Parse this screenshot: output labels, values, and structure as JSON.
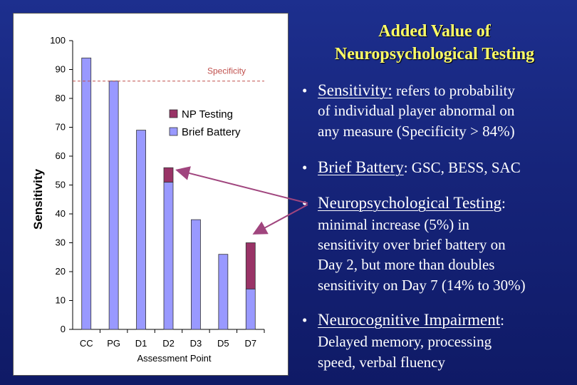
{
  "chart_data": {
    "type": "bar",
    "stacked": true,
    "categories": [
      "CC",
      "PG",
      "D1",
      "D2",
      "D3",
      "D5",
      "D7"
    ],
    "series": [
      {
        "name": "Brief Battery",
        "values": [
          94,
          86,
          69,
          51,
          38,
          26,
          14
        ],
        "color": "#9999ff"
      },
      {
        "name": "NP Testing",
        "values": [
          0,
          0,
          0,
          5,
          0,
          0,
          16
        ],
        "color": "#993366"
      }
    ],
    "xlabel": "Assessment Point",
    "ylabel": "Sensitivity",
    "ylim": [
      0,
      100
    ],
    "yticks": [
      0,
      10,
      20,
      30,
      40,
      50,
      60,
      70,
      80,
      90,
      100
    ],
    "reference_line": {
      "label": "Specificity",
      "value": 86,
      "color": "#c0504d",
      "style": "dashed"
    },
    "legend": {
      "placement": "right",
      "entries": [
        "NP Testing",
        "Brief Battery"
      ]
    }
  },
  "slide": {
    "title_line1": "Added Value of",
    "title_line2": "Neuropsychological Testing",
    "bullet_char": "•",
    "bullets": [
      {
        "term": "Sensitivity:",
        "text": " refers to probability",
        "continuation": [
          "of individual player abnormal on",
          "any measure (Specificity > 84%)"
        ]
      },
      {
        "term": "Brief Battery",
        "text": ": GSC, BESS, SAC",
        "continuation": []
      },
      {
        "term": "Neuropsychological Testing",
        "text": ":",
        "continuation": [
          "minimal increase (5%) in",
          "sensitivity over brief battery on",
          "Day 2, but more than doubles",
          "sensitivity on Day 7 (14% to 30%)"
        ]
      },
      {
        "term": "Neurocognitive Impairment",
        "text": ":",
        "continuation": [
          "Delayed memory, processing",
          "speed, verbal fluency"
        ]
      }
    ],
    "arrow_color": "#a0457e"
  }
}
